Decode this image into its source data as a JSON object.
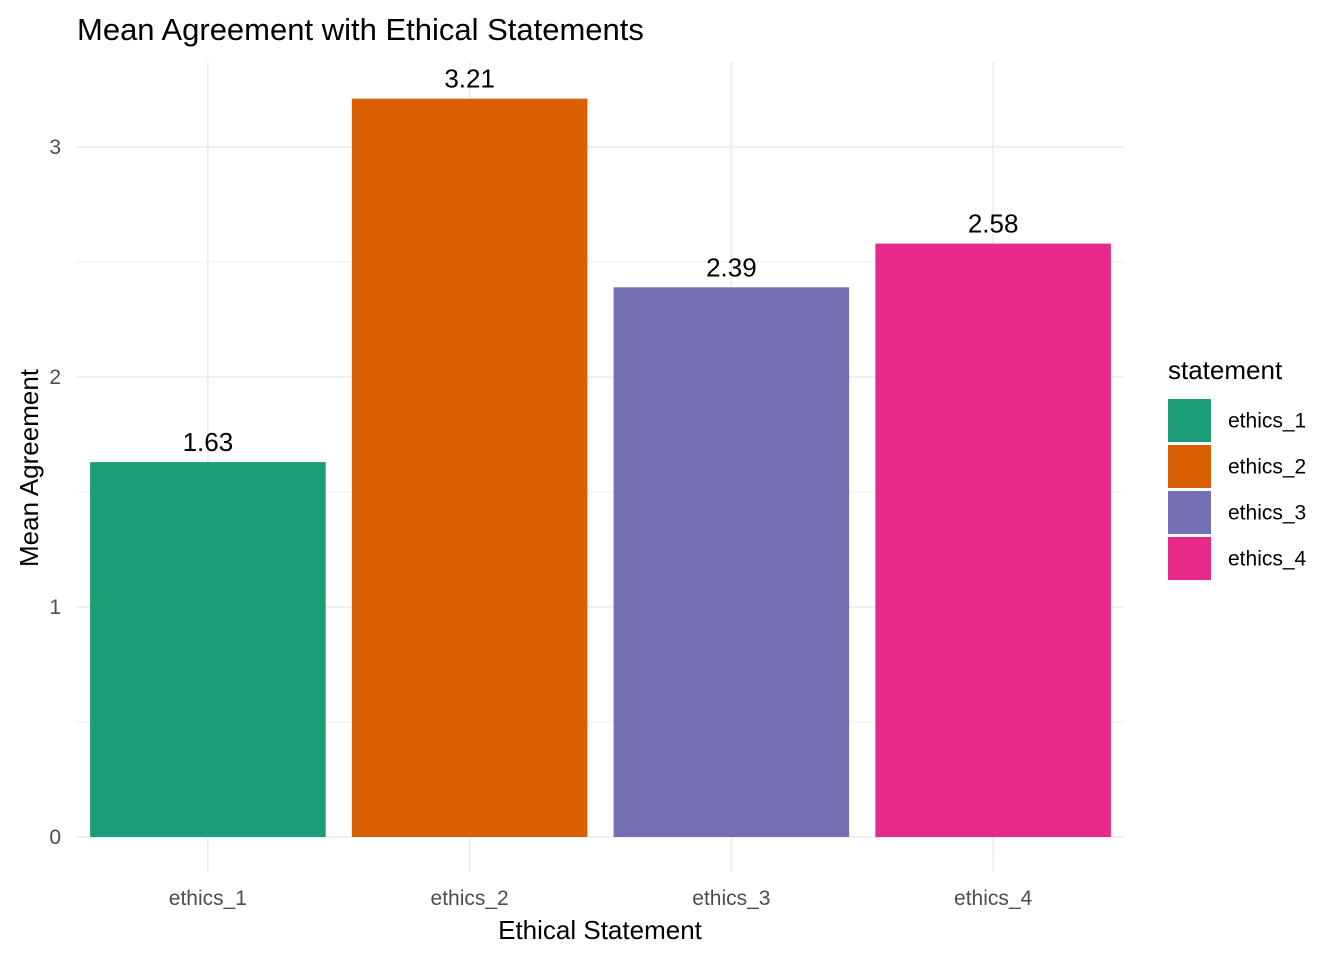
{
  "chart_data": {
    "type": "bar",
    "title": "Mean Agreement with Ethical Statements",
    "xlabel": "Ethical Statement",
    "ylabel": "Mean Agreement",
    "categories": [
      "ethics_1",
      "ethics_2",
      "ethics_3",
      "ethics_4"
    ],
    "values": [
      1.63,
      3.21,
      2.39,
      2.58
    ],
    "data_labels": [
      "1.63",
      "3.21",
      "2.39",
      "2.58"
    ],
    "colors": [
      "#1b9e77",
      "#d95f02",
      "#7570b3",
      "#e7298a"
    ],
    "ylim": [
      0,
      3.21
    ],
    "yticks": [
      0,
      1,
      2,
      3
    ],
    "ytick_labels": [
      "0",
      "1",
      "2",
      "3"
    ],
    "grid": true,
    "legend": {
      "title": "statement",
      "position": "right",
      "entries": [
        "ethics_1",
        "ethics_2",
        "ethics_3",
        "ethics_4"
      ]
    }
  }
}
